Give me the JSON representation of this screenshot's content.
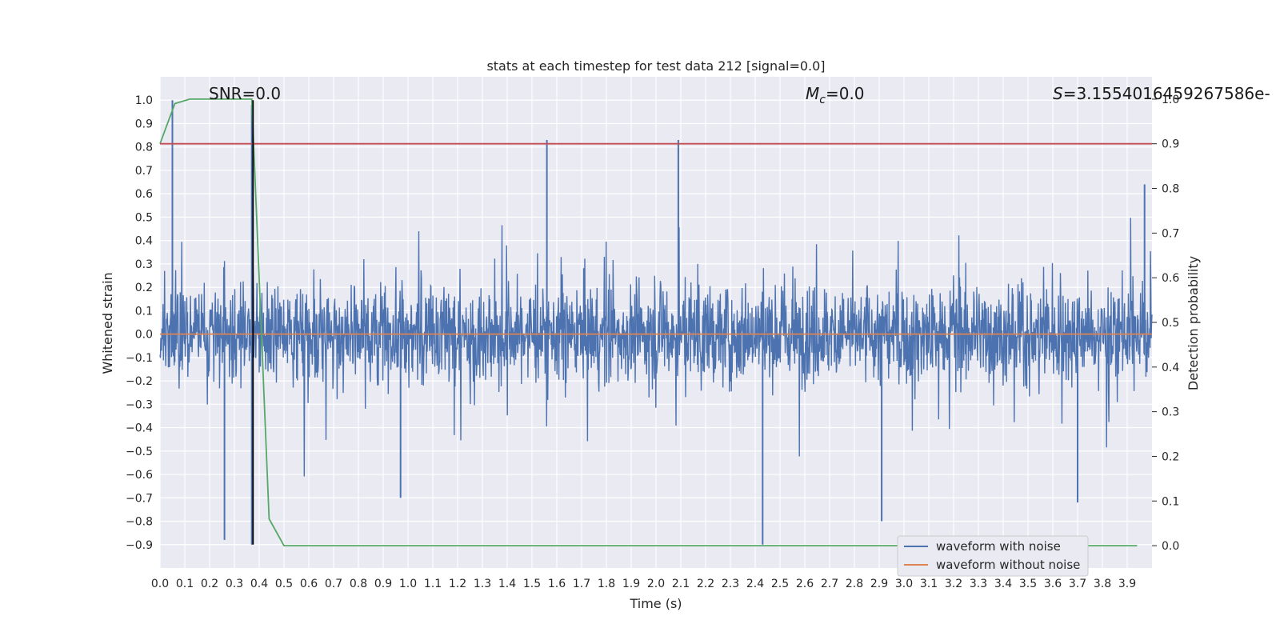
{
  "chart_data": {
    "type": "line",
    "title": "stats at each timestep for test data 212 [signal=0.0]",
    "xlabel": "Time (s)",
    "ylabel_left": "Whitened strain",
    "ylabel_right": "Detection probability",
    "xlim": [
      0.0,
      4.0
    ],
    "ylim_left": [
      -1.0,
      1.1
    ],
    "ylim_right": [
      -0.05,
      1.05
    ],
    "xticks": [
      "0.0",
      "0.1",
      "0.2",
      "0.3",
      "0.4",
      "0.5",
      "0.6",
      "0.7",
      "0.8",
      "0.9",
      "1.0",
      "1.1",
      "1.2",
      "1.3",
      "1.4",
      "1.5",
      "1.6",
      "1.7",
      "1.8",
      "1.9",
      "2.0",
      "2.1",
      "2.2",
      "2.3",
      "2.4",
      "2.5",
      "2.6",
      "2.7",
      "2.8",
      "2.9",
      "3.0",
      "3.1",
      "3.2",
      "3.3",
      "3.4",
      "3.5",
      "3.6",
      "3.7",
      "3.8",
      "3.9"
    ],
    "yticks_left": [
      "1.0",
      "0.9",
      "0.8",
      "0.7",
      "0.6",
      "0.5",
      "0.4",
      "0.3",
      "0.2",
      "0.1",
      "0.0",
      "−0.1",
      "−0.2",
      "−0.3",
      "−0.4",
      "−0.5",
      "−0.6",
      "−0.7",
      "−0.8",
      "−0.9"
    ],
    "yticks_right": [
      "1.0",
      "0.9",
      "0.8",
      "0.7",
      "0.6",
      "0.5",
      "0.4",
      "0.3",
      "0.2",
      "0.1",
      "0.0"
    ],
    "annotations": {
      "snr": "SNR=0.0",
      "mc_symbol": "M",
      "mc_sub": "c",
      "mc_value": "=0.0",
      "s_symbol": "S",
      "s_value": "=3.1554016459267586e-"
    },
    "series": [
      {
        "name": "waveform with noise",
        "color": "#4c72b0",
        "axis": "left",
        "description_values": "dense noise between about -0.9 and 1.0",
        "spikes": [
          {
            "x": 0.05,
            "y": 1.0
          },
          {
            "x": 0.26,
            "y": -0.88
          },
          {
            "x": 0.37,
            "y": 0.98
          },
          {
            "x": 0.37,
            "y": -0.9
          },
          {
            "x": 0.97,
            "y": -0.7
          },
          {
            "x": 1.56,
            "y": 0.83
          },
          {
            "x": 2.09,
            "y": 0.83
          },
          {
            "x": 2.43,
            "y": -0.9
          },
          {
            "x": 2.91,
            "y": -0.8
          },
          {
            "x": 3.7,
            "y": -0.72
          },
          {
            "x": 3.97,
            "y": 0.64
          }
        ]
      },
      {
        "name": "waveform without noise",
        "color": "#dd8452",
        "axis": "left",
        "x": [
          0.0,
          4.0
        ],
        "y": [
          0.0,
          0.0
        ]
      },
      {
        "name": "detection probability",
        "color": "#55a868",
        "axis": "right",
        "x": [
          0.0,
          0.06,
          0.12,
          0.19,
          0.25,
          0.31,
          0.37,
          0.44,
          0.5,
          0.56,
          1.0,
          2.0,
          3.0,
          3.94
        ],
        "y": [
          0.9,
          0.99,
          1.0,
          1.0,
          1.0,
          1.0,
          1.0,
          0.06,
          0.0,
          0.0,
          0.0,
          0.0,
          0.0,
          0.0
        ]
      },
      {
        "name": "threshold",
        "color": "#c44e52",
        "axis": "right",
        "x": [
          0.0,
          4.0
        ],
        "y": [
          0.9,
          0.9
        ]
      },
      {
        "name": "marker",
        "color": "#000000",
        "axis": "left",
        "x": [
          0.375,
          0.375
        ],
        "y": [
          -0.9,
          1.0
        ]
      }
    ],
    "legend": {
      "position": "bottom-right",
      "entries": [
        {
          "label": "waveform with noise",
          "color": "#4c72b0"
        },
        {
          "label": "waveform without noise",
          "color": "#dd8452"
        }
      ]
    }
  }
}
